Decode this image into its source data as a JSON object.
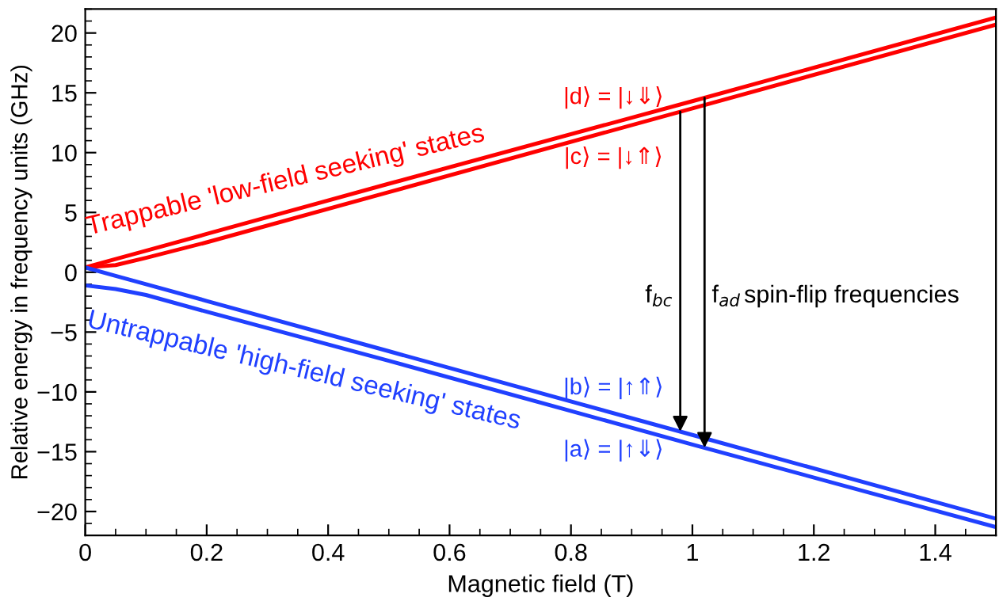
{
  "chart_data": {
    "type": "line",
    "xlabel": "Magnetic field (T)",
    "ylabel": "Relative energy in frequency units (GHz)",
    "x": [
      0,
      0.05,
      0.1,
      0.2,
      0.5,
      1.0,
      1.5
    ],
    "series": [
      {
        "name": "|d⟩ = |↓⇓⟩",
        "color": "#ff0000",
        "values": [
          0.4,
          1.1,
          1.8,
          3.2,
          7.4,
          14.3,
          21.3
        ]
      },
      {
        "name": "|c⟩ = |↓⇑⟩",
        "color": "#ff0000",
        "values": [
          0.4,
          0.6,
          1.2,
          2.5,
          6.7,
          13.7,
          20.7
        ]
      },
      {
        "name": "|b⟩ = |↑⇑⟩",
        "color": "#2040ff",
        "values": [
          0.4,
          -0.3,
          -1.0,
          -2.4,
          -6.6,
          -13.6,
          -20.6
        ]
      },
      {
        "name": "|a⟩ = |↑⇓⟩",
        "color": "#2040ff",
        "values": [
          -1.1,
          -1.4,
          -1.9,
          -3.3,
          -7.4,
          -14.4,
          -21.3
        ]
      }
    ],
    "annotations": [
      "f$_{bc}$",
      "f$_{ad}$",
      "spin-flip frequencies",
      "Trappable 'low-field seeking' states",
      "Untrappable 'high-field seeking' states"
    ],
    "xlim": [
      0,
      1.5
    ],
    "ylim": [
      -22,
      22
    ],
    "xticks": [
      0,
      0.2,
      0.4,
      0.6,
      0.8,
      1,
      1.2,
      1.4
    ],
    "yticks": [
      -20,
      -15,
      -10,
      -5,
      0,
      5,
      10,
      15,
      20
    ],
    "grid": false,
    "legend": false,
    "marker": "none",
    "line_style": "solid"
  }
}
